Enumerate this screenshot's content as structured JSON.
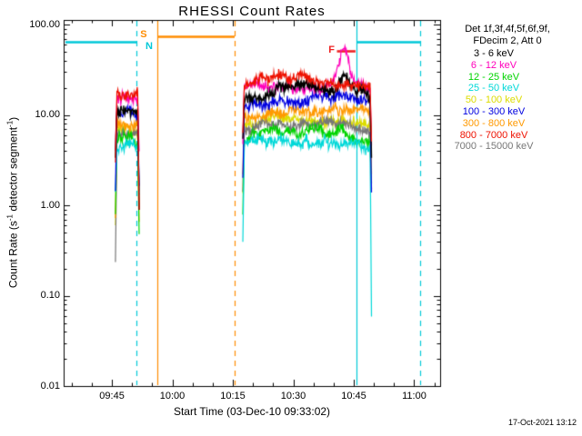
{
  "chart_data": {
    "type": "line",
    "title": "RHESSI Count Rates",
    "xlabel": "Start Time (03-Dec-10 09:33:02)",
    "ylabel_parts": {
      "p1": "Count Rate (s",
      "sup1": "-1",
      "p2": " detector segment",
      "sup2": "-1",
      "p3": ")"
    },
    "x_axis": {
      "start_time": "03-Dec-10 09:33:02",
      "minutes_range": [
        0,
        93.4
      ],
      "minor_tick_step_min": 5,
      "ticks": [
        {
          "label": "09:45",
          "t": 11.97
        },
        {
          "label": "10:00",
          "t": 26.97
        },
        {
          "label": "10:15",
          "t": 41.97
        },
        {
          "label": "10:30",
          "t": 56.97
        },
        {
          "label": "10:45",
          "t": 71.97
        },
        {
          "label": "11:00",
          "t": 86.97
        }
      ]
    },
    "y_axis": {
      "scale": "log",
      "range": [
        0.01,
        113
      ],
      "ticks": [
        {
          "label": "100.00",
          "value": 100
        },
        {
          "label": "10.00",
          "value": 10
        },
        {
          "label": "1.00",
          "value": 1
        },
        {
          "label": "0.10",
          "value": 0.1
        },
        {
          "label": "0.01",
          "value": 0.01
        }
      ]
    },
    "segments": [
      {
        "t0": 12.85,
        "t1": 18.75
      },
      {
        "t0": 44.45,
        "t1": 76.4
      }
    ],
    "series": [
      {
        "name": "3 - 6 keV",
        "color": "#000000",
        "base": [
          12,
          16.5
        ],
        "flare_amp": 1.4
      },
      {
        "name": "6 - 12 keV",
        "color": "#ff00bb",
        "base": [
          15,
          19
        ],
        "flare_amp": 2.4
      },
      {
        "name": "12 - 25 keV",
        "color": "#00d400",
        "base": [
          5,
          5.6
        ],
        "flare_amp": 1.12
      },
      {
        "name": "25 - 50 keV",
        "color": "#00d8d8",
        "base": [
          4.2,
          4.7
        ],
        "flare_amp": 1,
        "end_drop_seg2": 0.015
      },
      {
        "name": "50 - 100 keV",
        "color": "#dcdc00",
        "base": [
          6.8,
          8.3
        ],
        "flare_amp": 1
      },
      {
        "name": "100 - 300 keV",
        "color": "#0000e0",
        "base": [
          10.5,
          13.5
        ],
        "flare_amp": 1
      },
      {
        "name": "300 - 800 keV",
        "color": "#ff9900",
        "base": [
          8.2,
          10.2
        ],
        "flare_amp": 1
      },
      {
        "name": "800 - 7000 keV",
        "color": "#ee1100",
        "base": [
          17.5,
          22
        ],
        "flare_amp": 1
      },
      {
        "name": "7000 - 15000 keV",
        "color": "#777777",
        "base": [
          6.2,
          7.2
        ],
        "flare_amp": 1
      }
    ],
    "flare": {
      "t_peak": 69.5,
      "sigma_min": 1.0,
      "peak_value": 50
    },
    "event_lines": [
      {
        "t": 18.05,
        "color": "#00c8d8",
        "dash": true,
        "kind": "night-end"
      },
      {
        "t": 23.24,
        "color": "#ff8c00",
        "dash": false,
        "kind": "saa-start"
      },
      {
        "t": 42.41,
        "color": "#ff8c00",
        "dash": true,
        "kind": "saa-end"
      },
      {
        "t": 72.64,
        "color": "#00c8d8",
        "dash": false,
        "kind": "night-start"
      },
      {
        "t": 88.43,
        "color": "#00c8d8",
        "dash": true,
        "kind": "night-end"
      }
    ],
    "bars": [
      {
        "t0": 0.45,
        "t1": 18.05,
        "value": 65,
        "color": "#00c8d8",
        "kind": "night"
      },
      {
        "t0": 23.24,
        "t1": 42.41,
        "value": 74,
        "color": "#ff8c00",
        "kind": "saa"
      },
      {
        "t0": 72.64,
        "t1": 88.43,
        "value": 65,
        "color": "#00c8d8",
        "kind": "night"
      },
      {
        "t0": 67.8,
        "t1": 72.4,
        "value": 52,
        "color": "#ee2222",
        "kind": "flare"
      }
    ],
    "flag_labels": [
      {
        "label": "S",
        "t": 19.9,
        "value": 76,
        "color": "#ff8c00"
      },
      {
        "label": "N",
        "t": 21.2,
        "value": 56,
        "color": "#00c8d8"
      },
      {
        "label": "F",
        "t": 66.6,
        "value": 52,
        "color": "#ee2222"
      }
    ]
  },
  "legend": {
    "header1": "Det 1f,3f,4f,5f,6f,9f,",
    "header2": "FDecim 2, Att 0"
  },
  "footer": {
    "timestamp": "17-Oct-2021 13:12"
  }
}
